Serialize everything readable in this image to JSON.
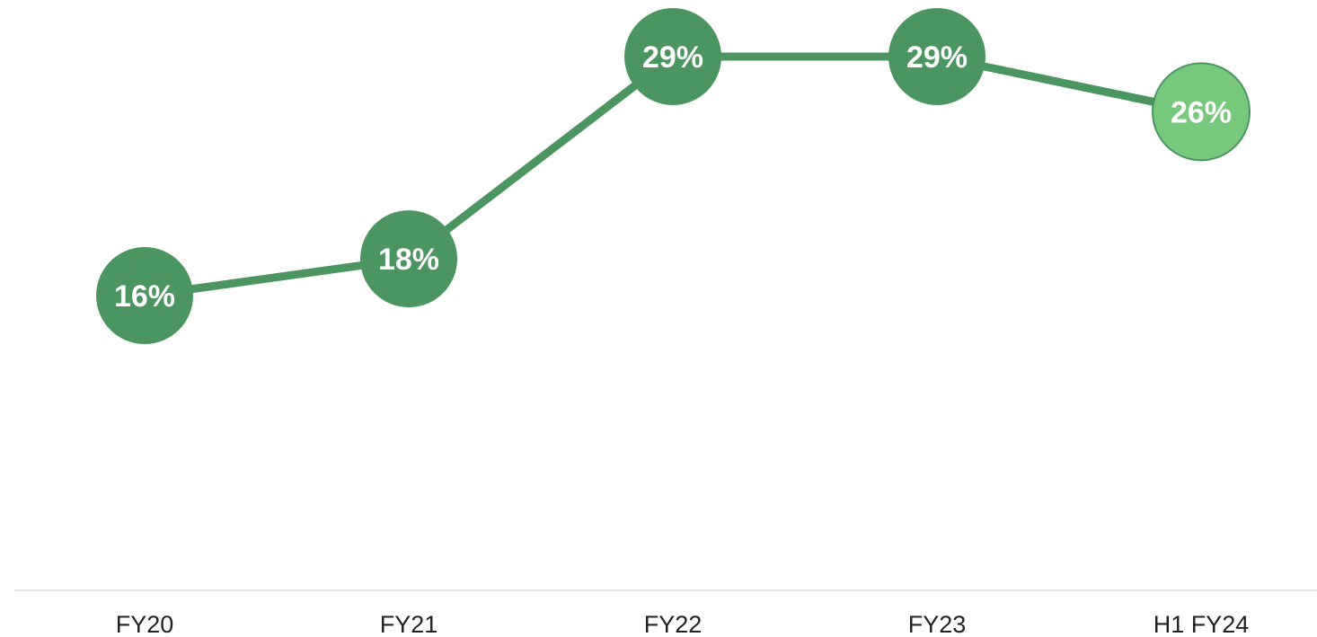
{
  "chart_data": {
    "type": "line",
    "categories": [
      "FY20",
      "FY21",
      "FY22",
      "FY23",
      "H1 FY24"
    ],
    "values": [
      16,
      18,
      29,
      29,
      26
    ],
    "labels": [
      "16%",
      "18%",
      "29%",
      "29%",
      "26%"
    ],
    "highlight_index": 4,
    "ylim": [
      0,
      30
    ],
    "grid": false,
    "legend": "none",
    "colors": {
      "line": "#4a9560",
      "marker": "#4a9560",
      "highlight_marker": "#78c87b",
      "highlight_stroke": "#4a9560",
      "axis": "#e4e4e4",
      "label_text": "#ffffff",
      "tick_text": "#222222"
    }
  }
}
